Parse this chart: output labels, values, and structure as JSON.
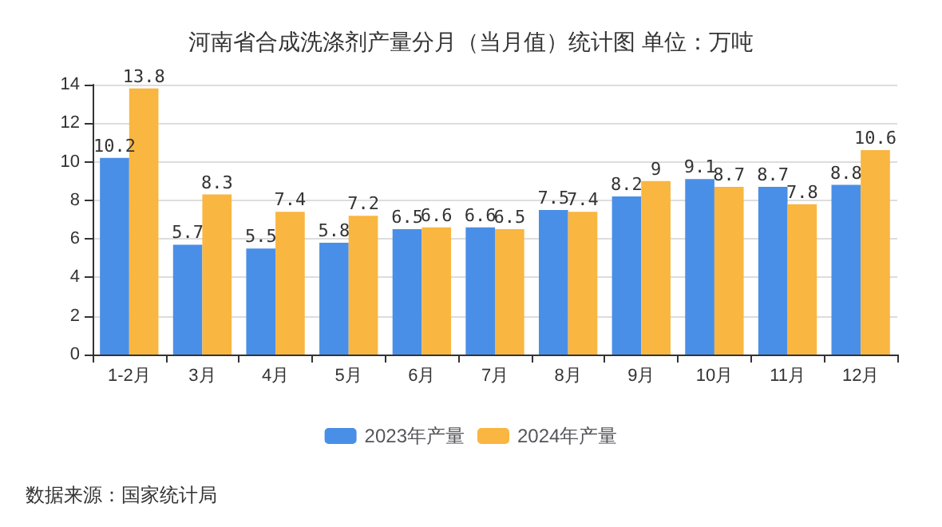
{
  "chart_data": {
    "type": "bar",
    "title": "河南省合成洗涤剂产量分月（当月值）统计图 单位：万吨",
    "categories": [
      "1-2月",
      "3月",
      "4月",
      "5月",
      "6月",
      "7月",
      "8月",
      "9月",
      "10月",
      "11月",
      "12月"
    ],
    "series": [
      {
        "name": "2023年产量",
        "color": "#4a8fe7",
        "values": [
          10.2,
          5.7,
          5.5,
          5.8,
          6.5,
          6.6,
          7.5,
          8.2,
          9.1,
          8.7,
          8.8
        ]
      },
      {
        "name": "2024年产量",
        "color": "#f9b640",
        "values": [
          13.8,
          8.3,
          7.4,
          7.2,
          6.6,
          6.5,
          7.4,
          9,
          8.7,
          7.8,
          10.6
        ]
      }
    ],
    "ylim": [
      0,
      14
    ],
    "yticks": [
      0,
      2,
      4,
      6,
      8,
      10,
      12,
      14
    ],
    "grid": "y",
    "legend": "bottom",
    "data_labels": true,
    "annotations": [
      "数据来源：国家统计局"
    ]
  }
}
